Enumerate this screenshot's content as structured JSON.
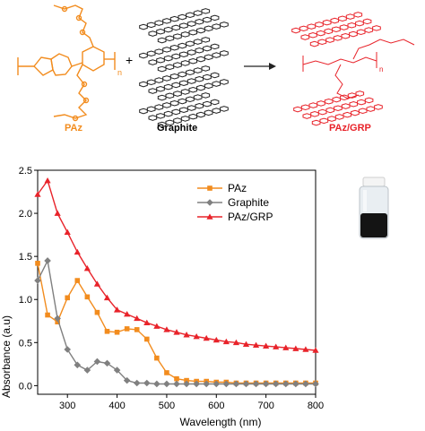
{
  "scheme": {
    "labels": {
      "paz": "PAz",
      "graphite": "Graphite",
      "paz_grp": "PAz/GRP"
    },
    "plus": "+",
    "subscript_n": "n",
    "colors": {
      "paz": "#f28c1e",
      "grp": "#e8232a",
      "graphite": "#222222"
    }
  },
  "chart_data": {
    "type": "line",
    "xlabel": "Wavelength (nm)",
    "ylabel": "Absorbance (a.u)",
    "xlim": [
      240,
      800
    ],
    "ylim": [
      -0.1,
      2.5
    ],
    "xticks": [
      300,
      400,
      500,
      600,
      700,
      800
    ],
    "yticks": [
      0.0,
      0.5,
      1.0,
      1.5,
      2.0,
      2.5
    ],
    "legend_position": "top-right",
    "series": [
      {
        "name": "PAz",
        "color": "#f28c1e",
        "marker": "square",
        "x": [
          240,
          260,
          280,
          300,
          320,
          340,
          360,
          380,
          400,
          420,
          440,
          460,
          480,
          500,
          520,
          540,
          560,
          580,
          600,
          620,
          640,
          660,
          680,
          700,
          720,
          740,
          760,
          780,
          800
        ],
        "y": [
          1.42,
          0.82,
          0.74,
          1.02,
          1.22,
          1.03,
          0.85,
          0.63,
          0.62,
          0.66,
          0.65,
          0.54,
          0.32,
          0.15,
          0.08,
          0.06,
          0.05,
          0.05,
          0.04,
          0.04,
          0.03,
          0.03,
          0.03,
          0.03,
          0.03,
          0.03,
          0.03,
          0.03,
          0.03
        ]
      },
      {
        "name": "Graphite",
        "color": "#808080",
        "marker": "diamond",
        "x": [
          240,
          260,
          280,
          300,
          320,
          340,
          360,
          380,
          400,
          420,
          440,
          460,
          480,
          500,
          520,
          540,
          560,
          580,
          600,
          620,
          640,
          660,
          680,
          700,
          720,
          740,
          760,
          780,
          800
        ],
        "y": [
          1.22,
          1.45,
          0.78,
          0.42,
          0.24,
          0.18,
          0.28,
          0.26,
          0.18,
          0.06,
          0.03,
          0.03,
          0.02,
          0.02,
          0.02,
          0.02,
          0.02,
          0.02,
          0.02,
          0.02,
          0.02,
          0.02,
          0.02,
          0.02,
          0.02,
          0.02,
          0.02,
          0.02,
          0.02
        ]
      },
      {
        "name": "PAz/GRP",
        "color": "#e8232a",
        "marker": "triangle",
        "x": [
          240,
          260,
          280,
          300,
          320,
          340,
          360,
          380,
          400,
          420,
          440,
          460,
          480,
          500,
          520,
          540,
          560,
          580,
          600,
          620,
          640,
          660,
          680,
          700,
          720,
          740,
          760,
          780,
          800
        ],
        "y": [
          2.22,
          2.38,
          2.0,
          1.78,
          1.55,
          1.36,
          1.18,
          1.02,
          0.88,
          0.83,
          0.78,
          0.73,
          0.69,
          0.65,
          0.62,
          0.59,
          0.57,
          0.55,
          0.53,
          0.51,
          0.5,
          0.48,
          0.47,
          0.46,
          0.45,
          0.44,
          0.43,
          0.42,
          0.41
        ]
      }
    ]
  }
}
